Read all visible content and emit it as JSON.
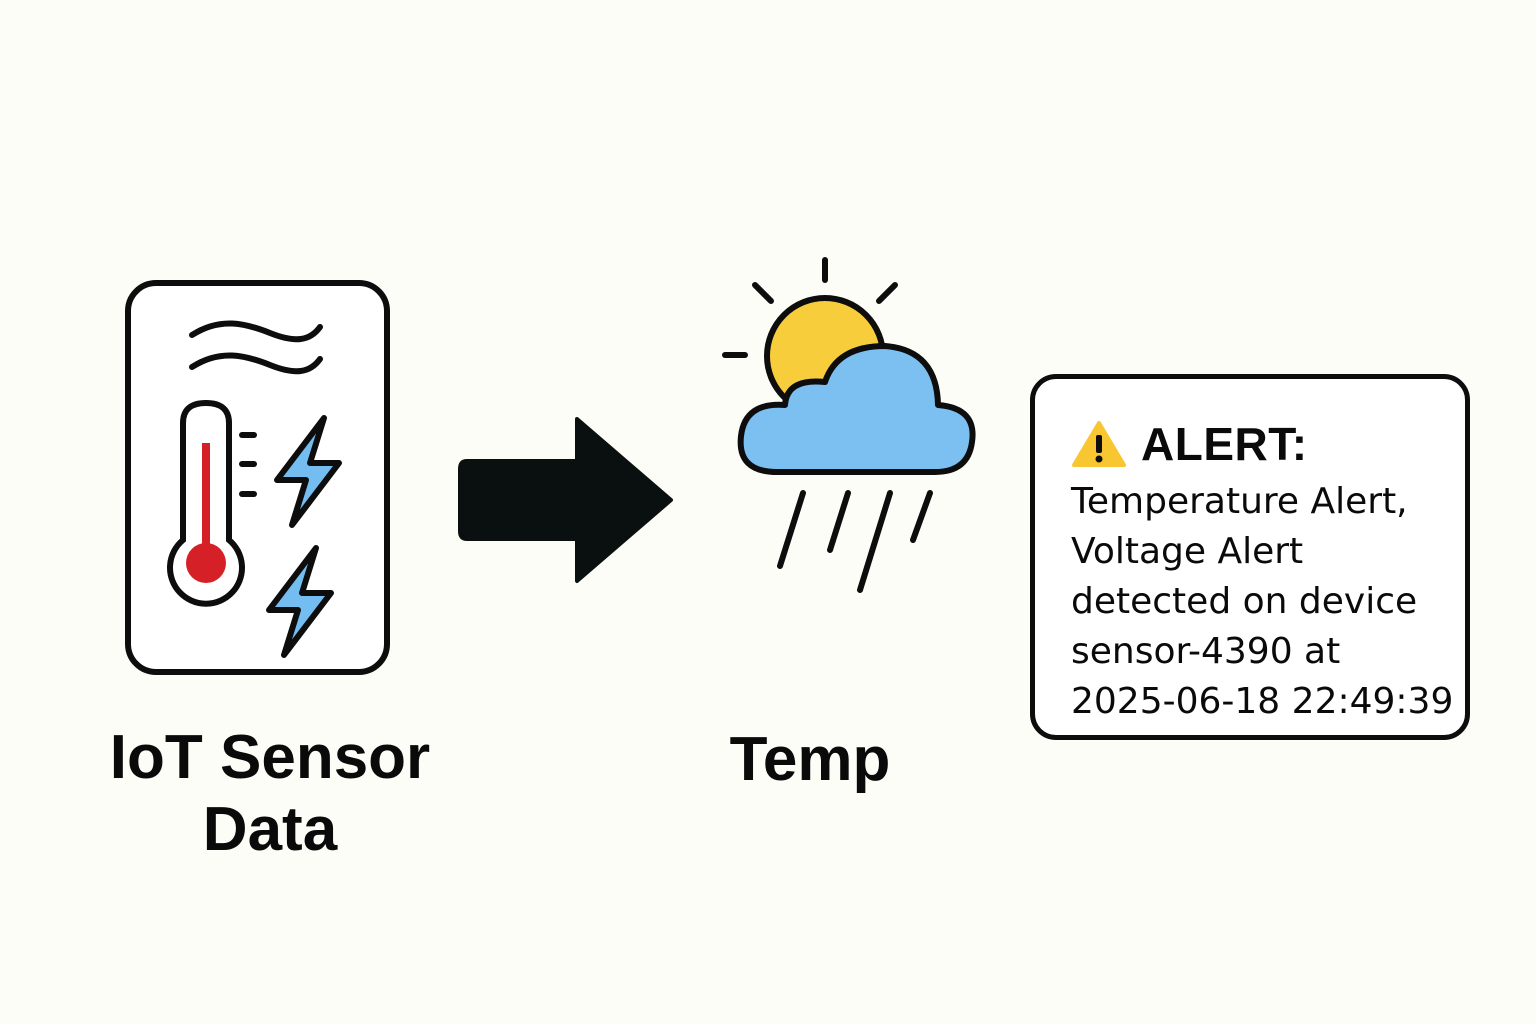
{
  "sensor": {
    "label_line1": "IoT Sensor",
    "label_line2": "Data",
    "icon": "iot-sensor-device-icon"
  },
  "arrow": {
    "icon": "right-arrow-icon"
  },
  "weather": {
    "label": "Temp",
    "icon": "sun-cloud-rain-icon"
  },
  "alert": {
    "icon": "warning-icon",
    "title": "ALERT:",
    "lines": [
      "Temperature Alert,",
      "Voltage Alert",
      "detected on device",
      "sensor-4390 at",
      "2025-06-18 22:49:39"
    ]
  },
  "colors": {
    "background": "#fdfdf8",
    "outline": "#0d0d0d",
    "thermometer_red": "#d62027",
    "lightning_blue": "#74bdf0",
    "cloud_blue": "#7cc0f2",
    "sun_yellow": "#f8cd3c",
    "warning_yellow": "#f8c630"
  }
}
